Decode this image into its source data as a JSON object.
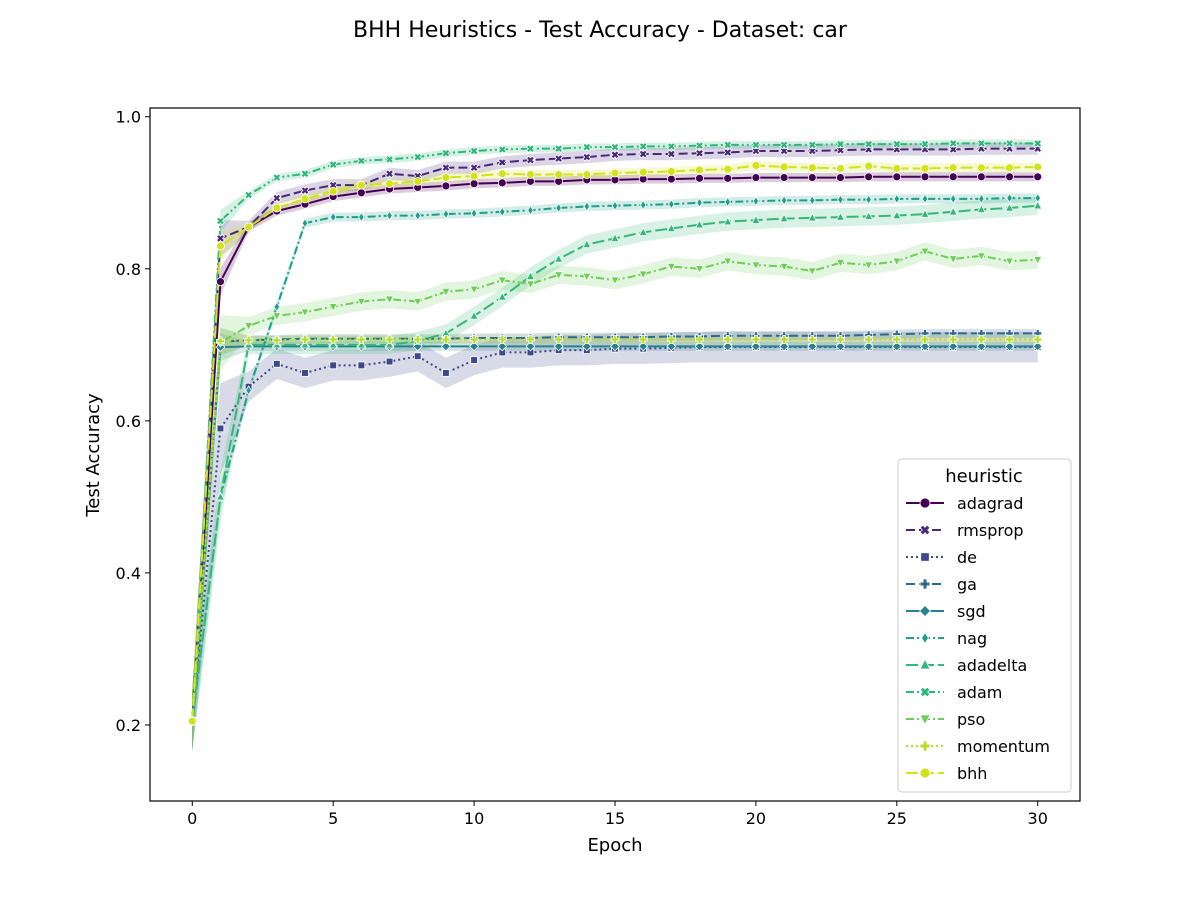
{
  "chart_data": {
    "type": "line",
    "title": "BHH Heuristics - Test Accuracy - Dataset: car",
    "xlabel": "Epoch",
    "ylabel": "Test Accuracy",
    "xlim": [
      -1.5,
      31.5
    ],
    "ylim": [
      0.1,
      1.0115
    ],
    "xticks": [
      0,
      5,
      10,
      15,
      20,
      25,
      30
    ],
    "yticks": [
      0.2,
      0.4,
      0.6,
      0.8,
      1.0
    ],
    "xtick_labels": [
      "0",
      "5",
      "10",
      "15",
      "20",
      "25",
      "30"
    ],
    "ytick_labels": [
      "0.2",
      "0.4",
      "0.6",
      "0.8",
      "1.0"
    ],
    "legend": {
      "title": "heuristic",
      "placement": "lower-right"
    },
    "x": [
      0,
      1,
      2,
      3,
      4,
      5,
      6,
      7,
      8,
      9,
      10,
      11,
      12,
      13,
      14,
      15,
      16,
      17,
      18,
      19,
      20,
      21,
      22,
      23,
      24,
      25,
      26,
      27,
      28,
      29,
      30
    ],
    "series": [
      {
        "name": "adagrad",
        "color": "#440154",
        "marker": "circle",
        "dash": "solid",
        "values": [
          0.205,
          0.783,
          0.855,
          0.876,
          0.885,
          0.895,
          0.9,
          0.905,
          0.907,
          0.909,
          0.912,
          0.913,
          0.915,
          0.915,
          0.917,
          0.917,
          0.918,
          0.918,
          0.919,
          0.919,
          0.92,
          0.92,
          0.92,
          0.92,
          0.921,
          0.921,
          0.921,
          0.921,
          0.921,
          0.921,
          0.921
        ],
        "band": 0.006
      },
      {
        "name": "rmsprop",
        "color": "#482878",
        "marker": "x",
        "dash": "dashed",
        "values": [
          0.205,
          0.84,
          0.855,
          0.893,
          0.903,
          0.91,
          0.91,
          0.925,
          0.922,
          0.933,
          0.933,
          0.94,
          0.943,
          0.945,
          0.947,
          0.95,
          0.951,
          0.951,
          0.952,
          0.953,
          0.955,
          0.955,
          0.955,
          0.956,
          0.957,
          0.957,
          0.957,
          0.957,
          0.958,
          0.958,
          0.958
        ],
        "band": 0.008
      },
      {
        "name": "de",
        "color": "#3e4989",
        "marker": "square",
        "dash": "dotted",
        "values": [
          0.205,
          0.59,
          0.645,
          0.675,
          0.663,
          0.673,
          0.673,
          0.678,
          0.685,
          0.663,
          0.68,
          0.69,
          0.69,
          0.693,
          0.693,
          0.695,
          0.695,
          0.696,
          0.697,
          0.697,
          0.697,
          0.697,
          0.697,
          0.697,
          0.697,
          0.697,
          0.697,
          0.697,
          0.697,
          0.697,
          0.697
        ],
        "band": 0.02
      },
      {
        "name": "ga",
        "color": "#31688e",
        "marker": "plus",
        "dash": "dashed",
        "values": [
          0.205,
          0.704,
          0.706,
          0.707,
          0.708,
          0.708,
          0.708,
          0.708,
          0.708,
          0.708,
          0.709,
          0.709,
          0.709,
          0.71,
          0.71,
          0.71,
          0.71,
          0.711,
          0.711,
          0.712,
          0.712,
          0.712,
          0.712,
          0.712,
          0.713,
          0.714,
          0.715,
          0.715,
          0.715,
          0.715,
          0.715
        ],
        "band": 0.006
      },
      {
        "name": "sgd",
        "color": "#26828e",
        "marker": "diamond",
        "dash": "solid",
        "values": [
          0.205,
          0.697,
          0.698,
          0.698,
          0.698,
          0.698,
          0.698,
          0.698,
          0.698,
          0.698,
          0.698,
          0.698,
          0.698,
          0.698,
          0.698,
          0.698,
          0.698,
          0.698,
          0.698,
          0.698,
          0.698,
          0.698,
          0.698,
          0.698,
          0.698,
          0.698,
          0.698,
          0.698,
          0.698,
          0.698,
          0.698
        ],
        "band": 0.006
      },
      {
        "name": "nag",
        "color": "#1f9e89",
        "marker": "thin-diamond",
        "dash": "dashdot",
        "values": [
          0.205,
          0.5,
          0.64,
          0.75,
          0.86,
          0.868,
          0.868,
          0.87,
          0.87,
          0.872,
          0.873,
          0.875,
          0.877,
          0.88,
          0.882,
          0.883,
          0.884,
          0.885,
          0.887,
          0.888,
          0.889,
          0.89,
          0.89,
          0.891,
          0.891,
          0.892,
          0.892,
          0.892,
          0.892,
          0.893,
          0.893
        ],
        "band": 0.006
      },
      {
        "name": "adadelta",
        "color": "#35b779",
        "marker": "triangle-up",
        "dash": "longdash",
        "values": [
          0.205,
          0.5,
          0.7,
          0.7,
          0.7,
          0.7,
          0.7,
          0.7,
          0.705,
          0.715,
          0.738,
          0.763,
          0.79,
          0.813,
          0.832,
          0.84,
          0.848,
          0.853,
          0.858,
          0.862,
          0.864,
          0.866,
          0.867,
          0.868,
          0.869,
          0.87,
          0.872,
          0.875,
          0.878,
          0.88,
          0.883
        ],
        "band": 0.012
      },
      {
        "name": "adam",
        "color": "#2cb87a",
        "marker": "x-filled",
        "dash": "dashdotdot",
        "values": [
          0.205,
          0.863,
          0.897,
          0.92,
          0.925,
          0.937,
          0.942,
          0.944,
          0.947,
          0.952,
          0.955,
          0.957,
          0.958,
          0.958,
          0.96,
          0.96,
          0.961,
          0.961,
          0.962,
          0.963,
          0.963,
          0.963,
          0.963,
          0.964,
          0.964,
          0.964,
          0.964,
          0.965,
          0.965,
          0.965,
          0.965
        ],
        "band": 0.005
      },
      {
        "name": "pso",
        "color": "#6ece58",
        "marker": "triangle-down",
        "dash": "dashdot",
        "values": [
          0.205,
          0.703,
          0.725,
          0.738,
          0.743,
          0.75,
          0.757,
          0.76,
          0.757,
          0.77,
          0.773,
          0.785,
          0.78,
          0.792,
          0.79,
          0.785,
          0.793,
          0.803,
          0.8,
          0.81,
          0.805,
          0.803,
          0.797,
          0.808,
          0.805,
          0.81,
          0.823,
          0.813,
          0.817,
          0.81,
          0.812
        ],
        "band": 0.012
      },
      {
        "name": "momentum",
        "color": "#b5de2b",
        "marker": "plus-filled",
        "dash": "dotted",
        "values": [
          0.205,
          0.705,
          0.706,
          0.706,
          0.707,
          0.707,
          0.707,
          0.707,
          0.707,
          0.707,
          0.707,
          0.707,
          0.707,
          0.707,
          0.707,
          0.707,
          0.707,
          0.707,
          0.707,
          0.707,
          0.707,
          0.707,
          0.707,
          0.707,
          0.707,
          0.707,
          0.707,
          0.707,
          0.707,
          0.707,
          0.707
        ],
        "band": 0.006
      },
      {
        "name": "bhh",
        "color": "#d2e21b",
        "marker": "octagon",
        "dash": "longdash",
        "values": [
          0.205,
          0.83,
          0.855,
          0.88,
          0.892,
          0.902,
          0.91,
          0.912,
          0.915,
          0.92,
          0.922,
          0.925,
          0.924,
          0.924,
          0.924,
          0.926,
          0.927,
          0.928,
          0.93,
          0.931,
          0.936,
          0.934,
          0.933,
          0.932,
          0.935,
          0.932,
          0.932,
          0.933,
          0.933,
          0.933,
          0.934
        ],
        "band": 0.006
      }
    ]
  }
}
